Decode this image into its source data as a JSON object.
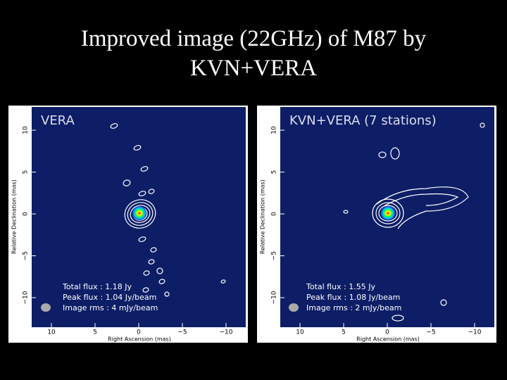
{
  "title": "Improved image (22GHz) of M87 by KVN+VERA",
  "panels": [
    {
      "label": "VERA",
      "ra_label": "Right Ascension (mas)",
      "dec_label": "Relative Declination (mas)",
      "x_ticks": [
        "10",
        "5",
        "0",
        "−5",
        "−10"
      ],
      "y_ticks": [
        "10",
        "5",
        "0",
        "−5",
        "−10"
      ],
      "stats": [
        "Total flux : 1.18 Jy",
        "Peak flux : 1.04 Jy/beam",
        "Image rms : 4 mJy/beam"
      ]
    },
    {
      "label": "KVN+VERA (7 stations)",
      "ra_label": "Right Ascension (mas)",
      "dec_label": "Relative Declination (mas)",
      "x_ticks": [
        "10",
        "5",
        "0",
        "−5",
        "−10"
      ],
      "y_ticks": [
        "10",
        "5",
        "0",
        "−5",
        "−10"
      ],
      "stats": [
        "Total flux : 1.55 Jy",
        "Peak flux : 1.08 Jy/beam",
        "Image rms : 2 mJy/beam"
      ]
    }
  ]
}
